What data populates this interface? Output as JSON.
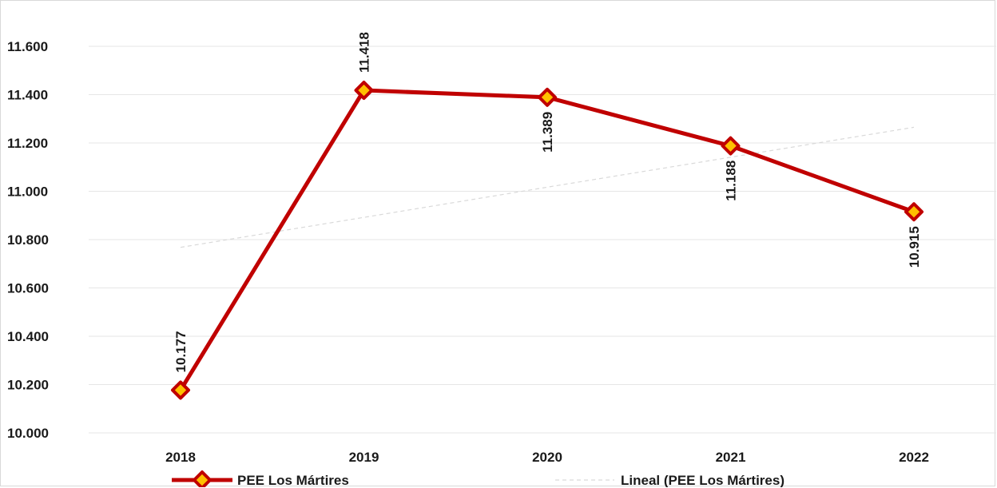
{
  "chart_data": {
    "type": "line",
    "categories": [
      "2018",
      "2019",
      "2020",
      "2021",
      "2022"
    ],
    "series": [
      {
        "name": "PEE Los Mártires",
        "values": [
          10177,
          11418,
          11389,
          11188,
          10915
        ],
        "data_labels": [
          "10.177",
          "11.418",
          "11.389",
          "11.188",
          "10.915"
        ],
        "color": "#c00000",
        "marker_fill": "#ffc000"
      },
      {
        "name": "Lineal (PEE Los Mártires)",
        "kind": "linear-trendline",
        "values": [
          10768,
          10892,
          11017,
          11141,
          11265
        ],
        "color": "#d9d9d9"
      }
    ],
    "ylim": [
      10000,
      11700
    ],
    "yticks": [
      10000,
      10200,
      10400,
      10600,
      10800,
      11000,
      11200,
      11400,
      11600
    ],
    "ytick_labels": [
      "10.000",
      "10.200",
      "10.400",
      "10.600",
      "10.800",
      "11.000",
      "11.200",
      "11.400",
      "11.600"
    ],
    "grid": true,
    "legend_position": "bottom",
    "title": "",
    "xlabel": "",
    "ylabel": ""
  }
}
